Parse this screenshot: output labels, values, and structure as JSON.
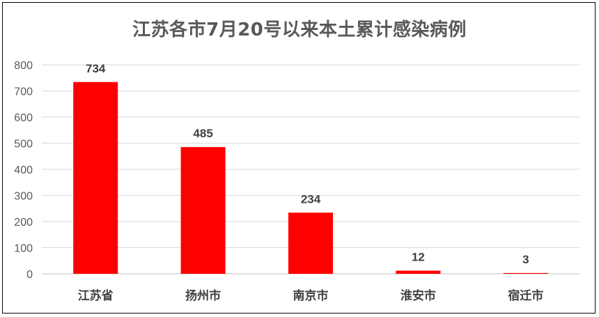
{
  "chart_data": {
    "type": "bar",
    "title": "江苏各市7月20号以来本土累计感染病例",
    "xlabel": "",
    "ylabel": "",
    "categories": [
      "江苏省",
      "扬州市",
      "南京市",
      "淮安市",
      "宿迁市"
    ],
    "values": [
      734,
      485,
      234,
      12,
      3
    ],
    "ylim": [
      0,
      800
    ],
    "yticks": [
      0,
      100,
      200,
      300,
      400,
      500,
      600,
      700,
      800
    ],
    "grid": true,
    "legend": "none",
    "bar_color": "#FF0000",
    "data_labels": true
  }
}
